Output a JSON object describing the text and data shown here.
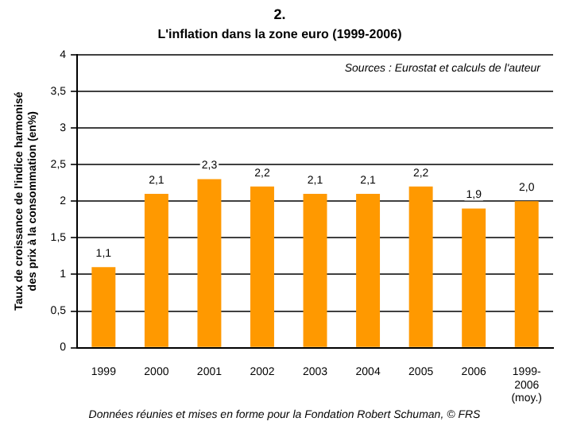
{
  "chart_data": {
    "type": "bar",
    "title": "2.",
    "subtitle": "L'inflation dans la zone euro (1999-2006)",
    "ylabel": "Taux de croissance de l'indice harmonisé des prix à la consommation (en%)",
    "categories": [
      "1999",
      "2000",
      "2001",
      "2002",
      "2003",
      "2004",
      "2005",
      "2006",
      "1999-2006 (moy.)"
    ],
    "values": [
      1.1,
      2.1,
      2.3,
      2.2,
      2.1,
      2.1,
      2.2,
      1.9,
      2.0
    ],
    "value_labels": [
      "1,1",
      "2,1",
      "2,3",
      "2,2",
      "2,1",
      "2,1",
      "2,2",
      "1,9",
      "2,0"
    ],
    "color": "#ff9900",
    "ylim": [
      0,
      4
    ],
    "yticks": [
      0,
      {
        "value": 0.5,
        "label": "0,5"
      },
      1,
      {
        "value": 1.5,
        "label": "1,5"
      },
      2,
      {
        "value": 2.5,
        "label": "2,5"
      },
      3,
      {
        "value": 3.5,
        "label": "3,5"
      },
      4
    ],
    "grid": "y",
    "legend": false,
    "annotations": [
      "Sources : Eurostat et calculs de l'auteur",
      "Données réunies et mises en forme pour la Fondation Robert Schuman, © FRS"
    ]
  }
}
